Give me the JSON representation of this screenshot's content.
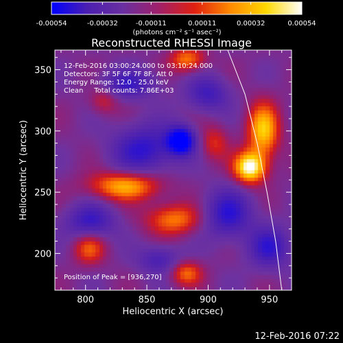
{
  "chart_data": {
    "type": "heatmap",
    "title": "Reconstructed RHESSI Image",
    "xlabel": "Heliocentric X (arcsec)",
    "ylabel": "Heliocentric Y (arcsec)",
    "xlim": [
      775,
      968
    ],
    "ylim": [
      170,
      366
    ],
    "x_ticks": [
      800,
      850,
      900,
      950
    ],
    "y_ticks": [
      200,
      250,
      300,
      350
    ],
    "x_tick_labels": [
      "800",
      "850",
      "900",
      "950"
    ],
    "y_tick_labels": [
      "200",
      "250",
      "300",
      "350"
    ],
    "colorbar": {
      "range": [
        -0.00054,
        0.00054
      ],
      "tick_values": [
        -0.00054,
        -0.00032,
        -0.00011,
        0.00011,
        0.00032,
        0.00054
      ],
      "tick_labels": [
        "-0.00054",
        "-0.00032",
        "-0.00011",
        "0.00011",
        "0.00032",
        "0.00054"
      ],
      "units": "(photons cm⁻² s⁻¹ asec⁻²)",
      "colors": [
        "#0000ff",
        "#4b1fb0",
        "#6a2fa0",
        "#a0206a",
        "#e02010",
        "#ff8a00",
        "#ffd800",
        "#ffffff"
      ]
    },
    "annotations": {
      "time_range": "12-Feb-2016 03:00:24.000 to 03:10:24.000",
      "detectors": "Detectors: 3F 5F 6F 7F 8F, Att 0",
      "energy_range": "Energy Range: 12.0 - 25.0 keV",
      "clean": "Clean     Total counts: 7.86E+03",
      "peak_position": "Position of Peak = [936,270]"
    },
    "peak": [
      936,
      270
    ],
    "sources": [
      {
        "x": 934,
        "y": 270,
        "sx": 9,
        "sy": 9,
        "amp": 1.0
      },
      {
        "x": 945,
        "y": 300,
        "sx": 9,
        "sy": 16,
        "amp": 0.75
      },
      {
        "x": 832,
        "y": 255,
        "sx": 20,
        "sy": 8,
        "amp": 0.7
      },
      {
        "x": 872,
        "y": 228,
        "sx": 16,
        "sy": 9,
        "amp": 0.55
      },
      {
        "x": 883,
        "y": 358,
        "sx": 10,
        "sy": 7,
        "amp": 0.55
      },
      {
        "x": 803,
        "y": 204,
        "sx": 9,
        "sy": 9,
        "amp": 0.45
      },
      {
        "x": 882,
        "y": 184,
        "sx": 9,
        "sy": 7,
        "amp": 0.5
      },
      {
        "x": 815,
        "y": 325,
        "sx": 8,
        "sy": 8,
        "amp": 0.3
      },
      {
        "x": 905,
        "y": 290,
        "sx": 8,
        "sy": 10,
        "amp": 0.35
      },
      {
        "x": 878,
        "y": 292,
        "sx": 8,
        "sy": 8,
        "amp": -0.95
      },
      {
        "x": 848,
        "y": 285,
        "sx": 18,
        "sy": 14,
        "amp": -0.55
      },
      {
        "x": 916,
        "y": 232,
        "sx": 14,
        "sy": 14,
        "amp": -0.55
      },
      {
        "x": 804,
        "y": 226,
        "sx": 14,
        "sy": 10,
        "amp": -0.5
      },
      {
        "x": 835,
        "y": 338,
        "sx": 16,
        "sy": 8,
        "amp": -0.45
      },
      {
        "x": 950,
        "y": 205,
        "sx": 12,
        "sy": 12,
        "amp": -0.5
      },
      {
        "x": 900,
        "y": 330,
        "sx": 12,
        "sy": 10,
        "amp": -0.45
      },
      {
        "x": 860,
        "y": 195,
        "sx": 12,
        "sy": 8,
        "amp": -0.4
      }
    ],
    "limb_curve": [
      [
        916,
        366
      ],
      [
        930,
        330
      ],
      [
        940,
        290
      ],
      [
        948,
        250
      ],
      [
        955,
        210
      ],
      [
        960,
        170
      ]
    ]
  },
  "footer": {
    "timestamp": "12-Feb-2016 07:22"
  }
}
